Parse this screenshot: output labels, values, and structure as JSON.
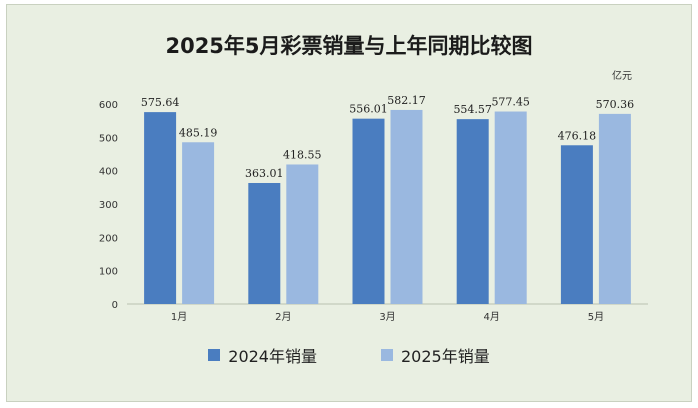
{
  "chart_data": {
    "type": "bar",
    "title": "2025年5月彩票销量与上年同期比较图",
    "unit": "亿元",
    "categories": [
      "1月",
      "2月",
      "3月",
      "4月",
      "5月"
    ],
    "series": [
      {
        "name": "2024年销量",
        "color": "#4a7dc0",
        "values": [
          575.64,
          363.01,
          556.01,
          554.57,
          476.18
        ],
        "labels": [
          "575.64",
          "363.01",
          "556.01",
          "554.57",
          "476.18"
        ]
      },
      {
        "name": "2025年销量",
        "color": "#9ab8e0",
        "values": [
          485.19,
          418.55,
          582.17,
          577.45,
          570.36
        ],
        "labels": [
          "485.19",
          "418.55",
          "582.17",
          "577.45",
          "570.36"
        ]
      }
    ],
    "yticks": [
      0,
      100,
      200,
      300,
      400,
      500,
      600
    ],
    "ylim": [
      0,
      600
    ],
    "legend_position": "bottom",
    "grid": false
  }
}
